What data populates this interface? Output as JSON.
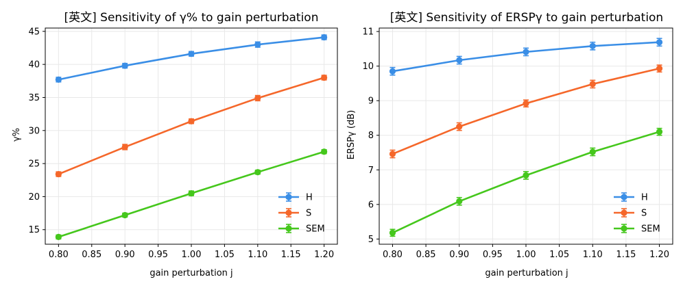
{
  "chart_data": [
    {
      "type": "line",
      "title": "[英文] Sensitivity of γ% to gain perturbation",
      "xlabel": "gain perturbation j",
      "ylabel": "γ%",
      "x": [
        0.8,
        0.9,
        1.0,
        1.1,
        1.2
      ],
      "xlim": [
        0.78,
        1.22
      ],
      "ylim": [
        12.8,
        45.5
      ],
      "xticks": [
        "0.80",
        "0.85",
        "0.90",
        "0.95",
        "1.00",
        "1.05",
        "1.10",
        "1.15",
        "1.20"
      ],
      "yticks": [
        "15",
        "20",
        "25",
        "30",
        "35",
        "40",
        "45"
      ],
      "grid": true,
      "legend_position": "lower-right",
      "series": [
        {
          "name": "H",
          "color": "#3a8ee6",
          "values": [
            37.7,
            39.8,
            41.6,
            43.0,
            44.1
          ],
          "errors": [
            0.35,
            0.35,
            0.35,
            0.4,
            0.35
          ]
        },
        {
          "name": "S",
          "color": "#f5672a",
          "values": [
            23.4,
            27.5,
            31.4,
            34.9,
            38.0
          ],
          "errors": [
            0.35,
            0.4,
            0.35,
            0.4,
            0.35
          ]
        },
        {
          "name": "SEM",
          "color": "#45c71c",
          "values": [
            13.9,
            17.2,
            20.5,
            23.7,
            26.8
          ],
          "errors": [
            0.3,
            0.3,
            0.35,
            0.3,
            0.3
          ]
        }
      ]
    },
    {
      "type": "line",
      "title": "[英文] Sensitivity of ERSPγ to gain perturbation",
      "xlabel": "gain perturbation j",
      "ylabel": "ERSPγ (dB)",
      "x": [
        0.8,
        0.9,
        1.0,
        1.1,
        1.2
      ],
      "xlim": [
        0.78,
        1.22
      ],
      "ylim": [
        4.85,
        11.1
      ],
      "xticks": [
        "0.80",
        "0.85",
        "0.90",
        "0.95",
        "1.00",
        "1.05",
        "1.10",
        "1.15",
        "1.20"
      ],
      "yticks": [
        "5",
        "6",
        "7",
        "8",
        "9",
        "10",
        "11"
      ],
      "grid": true,
      "legend_position": "lower-right",
      "series": [
        {
          "name": "H",
          "color": "#3a8ee6",
          "values": [
            9.85,
            10.17,
            10.41,
            10.58,
            10.69
          ],
          "errors": [
            0.11,
            0.11,
            0.11,
            0.11,
            0.11
          ]
        },
        {
          "name": "S",
          "color": "#f5672a",
          "values": [
            7.46,
            8.25,
            8.92,
            9.48,
            9.93
          ],
          "errors": [
            0.11,
            0.11,
            0.1,
            0.11,
            0.1
          ]
        },
        {
          "name": "SEM",
          "color": "#45c71c",
          "values": [
            5.18,
            6.09,
            6.84,
            7.52,
            8.1
          ],
          "errors": [
            0.1,
            0.11,
            0.11,
            0.11,
            0.1
          ]
        }
      ]
    }
  ]
}
